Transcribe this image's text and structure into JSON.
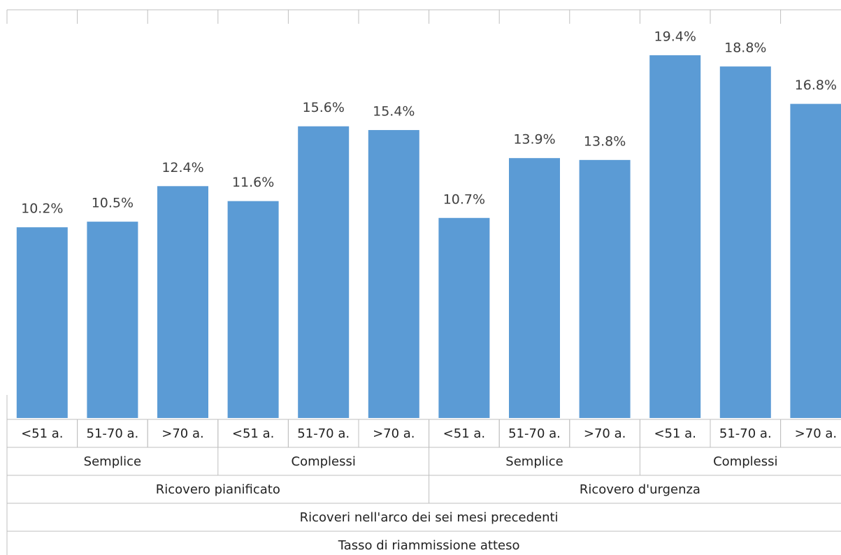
{
  "chart_data": {
    "type": "bar",
    "title": "Tasso di riammissione atteso",
    "x_label": "Ricoveri nell'arco dei sei mesi precedenti",
    "supergroups": [
      "Ricovero pianificato",
      "Ricovero d'urgenza"
    ],
    "groups": [
      "Semplice",
      "Complessi",
      "Semplice",
      "Complessi"
    ],
    "categories": [
      "<51 a.",
      "51-70 a.",
      ">70 a.",
      "<51 a.",
      "51-70 a.",
      ">70 a.",
      "<51 a.",
      "51-70 a.",
      ">70 a.",
      "<51 a.",
      "51-70 a.",
      ">70 a."
    ],
    "values": [
      10.2,
      10.5,
      12.4,
      11.6,
      15.6,
      15.4,
      10.7,
      13.9,
      13.8,
      19.4,
      18.8,
      16.8
    ],
    "value_labels": [
      "10.2%",
      "10.5%",
      "12.4%",
      "11.6%",
      "15.6%",
      "15.4%",
      "10.7%",
      "13.9%",
      "13.8%",
      "19.4%",
      "18.8%",
      "16.8%"
    ],
    "color": "#5b9bd5",
    "ylim": [
      0,
      20
    ]
  }
}
